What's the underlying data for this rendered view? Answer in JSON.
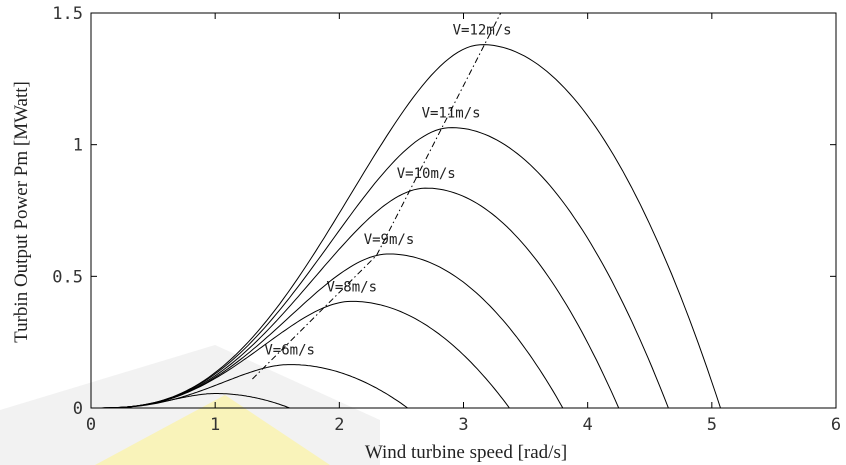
{
  "chart_data": {
    "type": "line",
    "xlabel": "Wind turbine speed [rad/s]",
    "ylabel": "Turbin Output Power Pm [MWatt]",
    "xlim": [
      0,
      6
    ],
    "ylim": [
      0,
      1.5
    ],
    "xticks": [
      "0",
      "1",
      "2",
      "3",
      "4",
      "5",
      "6"
    ],
    "yticks": [
      "0",
      "0.5",
      "1",
      "1.5"
    ],
    "grid": false,
    "series": [
      {
        "name": "V=6m/s",
        "peak_x": 1.6,
        "peak_y": 0.165,
        "zero_x": 2.55
      },
      {
        "name": "V=8m/s",
        "peak_x": 2.1,
        "peak_y": 0.405,
        "zero_x": 3.37
      },
      {
        "name": "V=9m/s",
        "peak_x": 2.4,
        "peak_y": 0.585,
        "zero_x": 3.8
      },
      {
        "name": "V=10m/s",
        "peak_x": 2.7,
        "peak_y": 0.835,
        "zero_x": 4.25
      },
      {
        "name": "V=11m/s",
        "peak_x": 2.9,
        "peak_y": 1.065,
        "zero_x": 4.65
      },
      {
        "name": "V=12m/s",
        "peak_x": 3.15,
        "peak_y": 1.38,
        "zero_x": 5.07
      }
    ],
    "extra_curve": {
      "peak_x": 1.0,
      "peak_y": 0.055,
      "zero_x": 1.6
    },
    "mpp_line": [
      [
        1.3,
        0.11
      ],
      [
        2.3,
        0.58
      ],
      [
        3.3,
        1.5
      ]
    ]
  }
}
